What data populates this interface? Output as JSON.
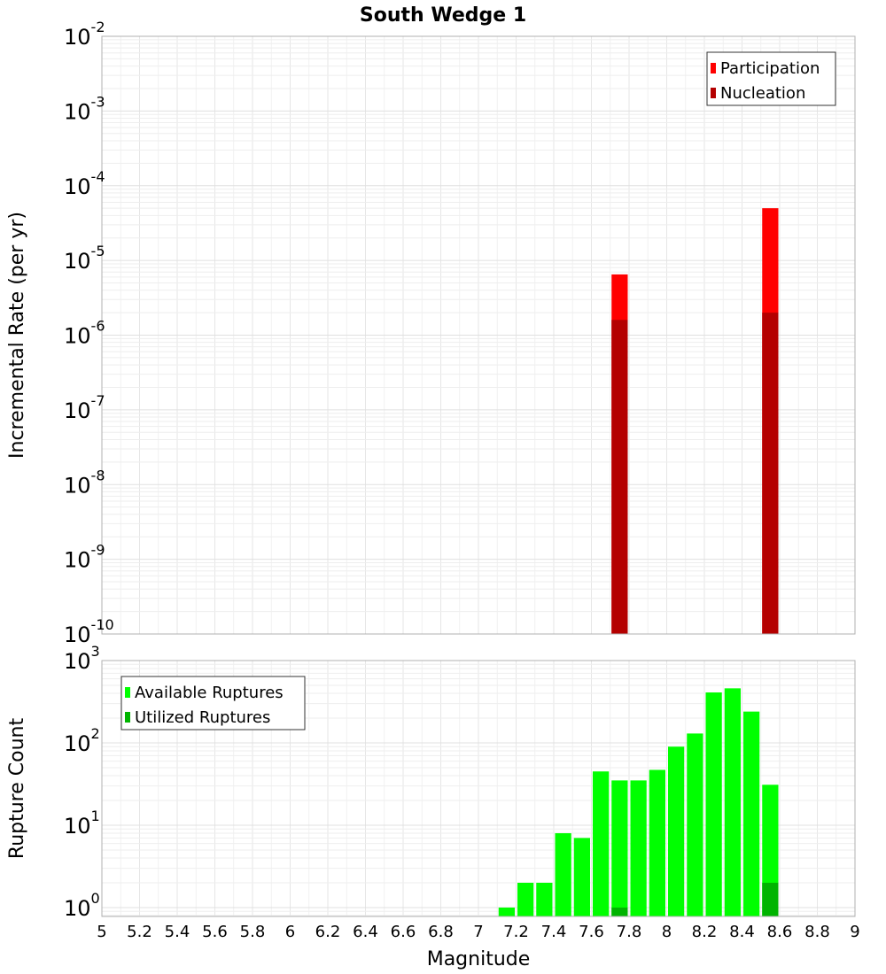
{
  "chart_data": {
    "title": "South Wedge 1",
    "xlabel": "Magnitude",
    "xlim": [
      5,
      9
    ],
    "xticks": [
      "5",
      "5.2",
      "5.4",
      "5.6",
      "5.8",
      "6",
      "6.2",
      "6.4",
      "6.6",
      "6.8",
      "7",
      "7.2",
      "7.4",
      "7.6",
      "7.8",
      "8",
      "8.2",
      "8.4",
      "8.6",
      "8.8",
      "9"
    ],
    "bin_width": 0.1,
    "panels": [
      {
        "type": "bar",
        "yscale": "log",
        "ylabel": "Incremental Rate (per yr)",
        "ylim": [
          1e-10,
          0.01
        ],
        "yticks": [
          {
            "base": "10",
            "exp": "-10"
          },
          {
            "base": "10",
            "exp": "-9"
          },
          {
            "base": "10",
            "exp": "-8"
          },
          {
            "base": "10",
            "exp": "-7"
          },
          {
            "base": "10",
            "exp": "-6"
          },
          {
            "base": "10",
            "exp": "-5"
          },
          {
            "base": "10",
            "exp": "-4"
          },
          {
            "base": "10",
            "exp": "-3"
          },
          {
            "base": "10",
            "exp": "-2"
          }
        ],
        "legend_position": "top-right",
        "series": [
          {
            "name": "Participation",
            "color": "#ff0000",
            "x": [
              7.75,
              8.55
            ],
            "values": [
              6.5e-06,
              5e-05
            ]
          },
          {
            "name": "Nucleation",
            "color": "#b40000",
            "x": [
              7.75,
              8.55
            ],
            "values": [
              1.6e-06,
              2e-06
            ]
          }
        ]
      },
      {
        "type": "bar",
        "yscale": "log",
        "ylabel": "Rupture Count",
        "ylim": [
          0.78,
          1000
        ],
        "yticks": [
          {
            "base": "10",
            "exp": "0"
          },
          {
            "base": "10",
            "exp": "1"
          },
          {
            "base": "10",
            "exp": "2"
          },
          {
            "base": "10",
            "exp": "3"
          }
        ],
        "legend_position": "top-left",
        "series": [
          {
            "name": "Available Ruptures",
            "color": "#00ff00",
            "x": [
              7.15,
              7.25,
              7.35,
              7.45,
              7.55,
              7.65,
              7.75,
              7.85,
              7.95,
              8.05,
              8.15,
              8.25,
              8.35,
              8.45,
              8.55
            ],
            "values": [
              1,
              2,
              2,
              8,
              7,
              45,
              35,
              35,
              47,
              90,
              130,
              410,
              460,
              240,
              31
            ]
          },
          {
            "name": "Utilized Ruptures",
            "color": "#00b400",
            "x": [
              7.75,
              8.55
            ],
            "values": [
              1,
              2
            ]
          }
        ]
      }
    ]
  }
}
